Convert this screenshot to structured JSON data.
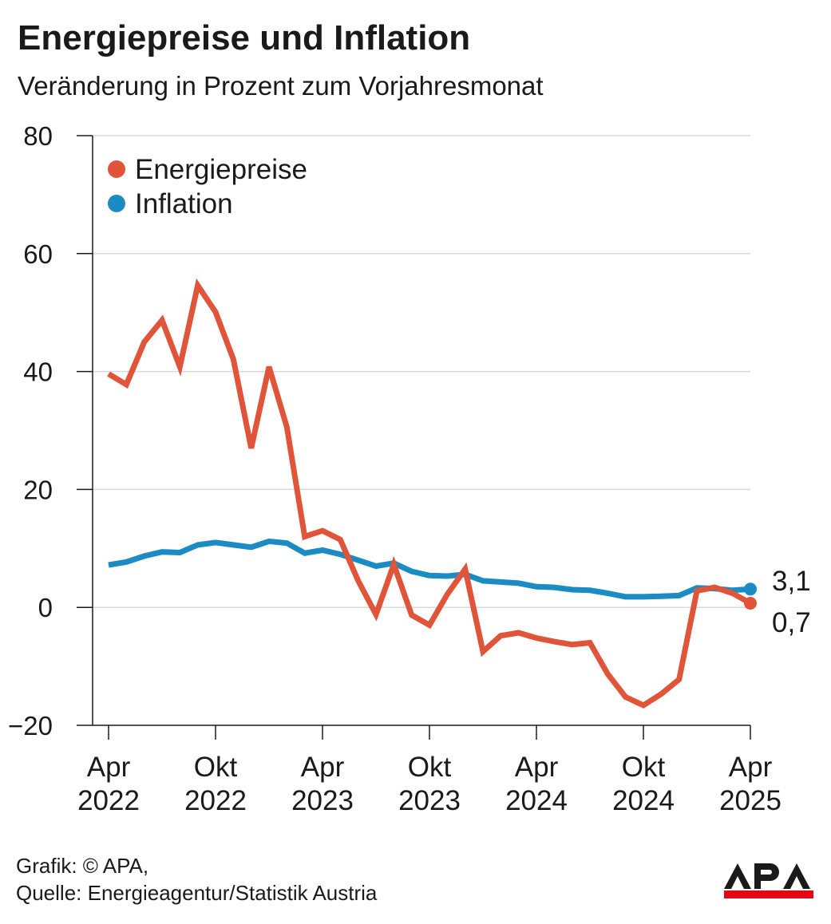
{
  "header": {
    "title": "Energiepreise und Inflation",
    "subtitle": "Veränderung in Prozent zum Vorjahresmonat"
  },
  "footer": {
    "credit": "Grafik: © APA,",
    "source": "Quelle: Energieagentur/Statistik Austria"
  },
  "logo": {
    "text": "APA",
    "colors": {
      "text": "#1a1a1a",
      "bar": "#e30613"
    }
  },
  "chart_data": {
    "type": "line",
    "title": "Energiepreise und Inflation",
    "subtitle": "Veränderung in Prozent zum Vorjahresmonat",
    "xlabel": "",
    "ylabel": "",
    "ylim": [
      -20,
      80
    ],
    "yticks": [
      80,
      60,
      40,
      20,
      0,
      -20
    ],
    "ytick_labels": [
      "80",
      "60",
      "40",
      "20",
      "0",
      "−20"
    ],
    "grid": true,
    "legend_placement": "top-left",
    "x_months": [
      "2022-04",
      "2022-05",
      "2022-06",
      "2022-07",
      "2022-08",
      "2022-09",
      "2022-10",
      "2022-11",
      "2022-12",
      "2023-01",
      "2023-02",
      "2023-03",
      "2023-04",
      "2023-05",
      "2023-06",
      "2023-07",
      "2023-08",
      "2023-09",
      "2023-10",
      "2023-11",
      "2023-12",
      "2024-01",
      "2024-02",
      "2024-03",
      "2024-04",
      "2024-05",
      "2024-06",
      "2024-07",
      "2024-08",
      "2024-09",
      "2024-10",
      "2024-11",
      "2024-12",
      "2025-01",
      "2025-02",
      "2025-03",
      "2025-04"
    ],
    "xticks": [
      {
        "month": "2022-04",
        "line1": "Apr",
        "line2": "2022"
      },
      {
        "month": "2022-10",
        "line1": "Okt",
        "line2": "2022"
      },
      {
        "month": "2023-04",
        "line1": "Apr",
        "line2": "2023"
      },
      {
        "month": "2023-10",
        "line1": "Okt",
        "line2": "2023"
      },
      {
        "month": "2024-04",
        "line1": "Apr",
        "line2": "2024"
      },
      {
        "month": "2024-10",
        "line1": "Okt",
        "line2": "2024"
      },
      {
        "month": "2025-04",
        "line1": "Apr",
        "line2": "2025"
      }
    ],
    "series": [
      {
        "name": "Energiepreise",
        "color": "#e0553a",
        "values": [
          39.6,
          37.8,
          45.0,
          48.7,
          40.8,
          54.6,
          50.1,
          42.1,
          27.0,
          40.8,
          30.6,
          12.0,
          13.0,
          11.5,
          4.5,
          -1.2,
          7.3,
          -1.3,
          -3.0,
          2.2,
          6.5,
          -7.5,
          -4.8,
          -4.3,
          -5.2,
          -5.8,
          -6.3,
          -6.0,
          -11.3,
          -15.2,
          -16.6,
          -14.7,
          -12.2,
          2.8,
          3.4,
          2.4,
          0.7
        ],
        "end_label": "0,7"
      },
      {
        "name": "Inflation",
        "color": "#1a8bc3",
        "values": [
          7.2,
          7.7,
          8.7,
          9.4,
          9.3,
          10.6,
          11.0,
          10.6,
          10.2,
          11.2,
          10.9,
          9.2,
          9.7,
          9.0,
          8.0,
          7.0,
          7.5,
          6.1,
          5.4,
          5.3,
          5.6,
          4.5,
          4.3,
          4.1,
          3.5,
          3.4,
          3.0,
          2.9,
          2.4,
          1.8,
          1.8,
          1.9,
          2.0,
          3.3,
          3.2,
          2.9,
          3.1
        ],
        "end_label": "3,1"
      }
    ]
  }
}
